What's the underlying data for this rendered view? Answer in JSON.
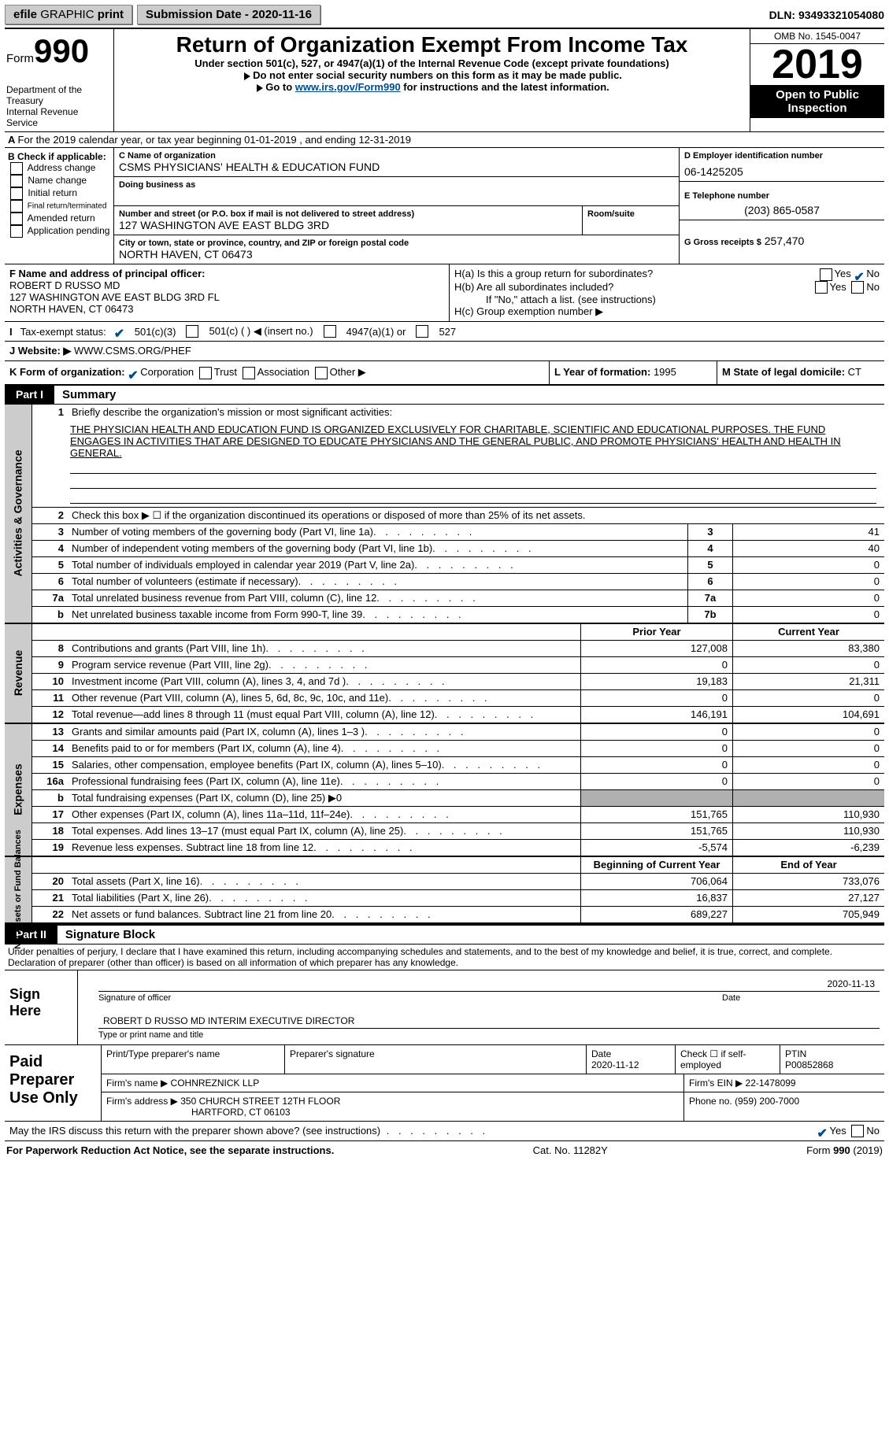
{
  "topbar": {
    "efile_a": "efile",
    "efile_b": "GRAPHIC",
    "efile_c": "print",
    "submission_label": "Submission Date - 2020-11-16",
    "dln": "DLN: 93493321054080"
  },
  "header": {
    "form_word": "Form",
    "form_num": "990",
    "dept1": "Department of the Treasury",
    "dept2": "Internal Revenue Service",
    "title": "Return of Organization Exempt From Income Tax",
    "sub1": "Under section 501(c), 527, or 4947(a)(1) of the Internal Revenue Code (except private foundations)",
    "sub2": "Do not enter social security numbers on this form as it may be made public.",
    "sub3a": "Go to ",
    "sub3_link": "www.irs.gov/Form990",
    "sub3b": " for instructions and the latest information.",
    "omb": "OMB No. 1545-0047",
    "year": "2019",
    "open": "Open to Public Inspection"
  },
  "row_a": "For the 2019 calendar year, or tax year beginning 01-01-2019    , and ending 12-31-2019",
  "box_b": {
    "lbl": "B Check if applicable:",
    "items": [
      "Address change",
      "Name change",
      "Initial return",
      "Final return/terminated",
      "Amended return",
      "Application pending"
    ]
  },
  "box_c": {
    "lbl_name": "C Name of organization",
    "name": "CSMS PHYSICIANS' HEALTH & EDUCATION FUND",
    "dba_lbl": "Doing business as",
    "addr_lbl": "Number and street (or P.O. box if mail is not delivered to street address)",
    "room_lbl": "Room/suite",
    "addr": "127 WASHINGTON AVE EAST BLDG 3RD",
    "city_lbl": "City or town, state or province, country, and ZIP or foreign postal code",
    "city": "NORTH HAVEN, CT  06473"
  },
  "box_d": {
    "lbl": "D Employer identification number",
    "ein": "06-1425205",
    "tel_lbl": "E Telephone number",
    "tel": "(203) 865-0587",
    "gross_lbl": "G Gross receipts $",
    "gross": "257,470"
  },
  "box_f": {
    "lbl": "F Name and address of principal officer:",
    "l1": "ROBERT D RUSSO MD",
    "l2": "127 WASHINGTON AVE EAST BLDG 3RD FL",
    "l3": "NORTH HAVEN, CT  06473"
  },
  "box_h": {
    "ha": "H(a)  Is this a group return for subordinates?",
    "hb": "H(b)  Are all subordinates included?",
    "hb_note": "If \"No,\" attach a list. (see instructions)",
    "hc": "H(c)  Group exemption number ▶",
    "yes": "Yes",
    "no": "No"
  },
  "row_i": {
    "lbl": "Tax-exempt status:",
    "o1": "501(c)(3)",
    "o2": "501(c) (  ) ◀ (insert no.)",
    "o3": "4947(a)(1) or",
    "o4": "527"
  },
  "row_j": {
    "lbl": "J   Website: ▶",
    "val": "WWW.CSMS.ORG/PHEF"
  },
  "row_k": {
    "lbl": "K Form of organization:",
    "opts": [
      "Corporation",
      "Trust",
      "Association",
      "Other ▶"
    ],
    "l_lbl": "L Year of formation: ",
    "l_val": "1995",
    "m_lbl": "M State of legal domicile: ",
    "m_val": "CT"
  },
  "part1": {
    "tab": "Part I",
    "title": "Summary"
  },
  "sec1": {
    "label": "Activities & Governance",
    "l1": "Briefly describe the organization's mission or most significant activities:",
    "mission": "THE PHYSICIAN HEALTH AND EDUCATION FUND IS ORGANIZED EXCLUSIVELY FOR CHARITABLE, SCIENTIFIC AND EDUCATIONAL PURPOSES. THE FUND ENGAGES IN ACTIVITIES THAT ARE DESIGNED TO EDUCATE PHYSICIANS AND THE GENERAL PUBLIC, AND PROMOTE PHYSICIANS' HEALTH AND HEALTH IN GENERAL.",
    "l2": "Check this box ▶ ☐ if the organization discontinued its operations or disposed of more than 25% of its net assets.",
    "rows": [
      {
        "n": "3",
        "t": "Number of voting members of the governing body (Part VI, line 1a)",
        "c": "3",
        "v": "41"
      },
      {
        "n": "4",
        "t": "Number of independent voting members of the governing body (Part VI, line 1b)",
        "c": "4",
        "v": "40"
      },
      {
        "n": "5",
        "t": "Total number of individuals employed in calendar year 2019 (Part V, line 2a)",
        "c": "5",
        "v": "0"
      },
      {
        "n": "6",
        "t": "Total number of volunteers (estimate if necessary)",
        "c": "6",
        "v": "0"
      },
      {
        "n": "7a",
        "t": "Total unrelated business revenue from Part VIII, column (C), line 12",
        "c": "7a",
        "v": "0"
      },
      {
        "n": "b",
        "t": "Net unrelated business taxable income from Form 990-T, line 39",
        "c": "7b",
        "v": "0"
      }
    ]
  },
  "colheads": {
    "prior": "Prior Year",
    "current": "Current Year",
    "bcy": "Beginning of Current Year",
    "eoy": "End of Year"
  },
  "sec_rev": {
    "label": "Revenue",
    "rows": [
      {
        "n": "8",
        "t": "Contributions and grants (Part VIII, line 1h)",
        "p": "127,008",
        "c": "83,380"
      },
      {
        "n": "9",
        "t": "Program service revenue (Part VIII, line 2g)",
        "p": "0",
        "c": "0"
      },
      {
        "n": "10",
        "t": "Investment income (Part VIII, column (A), lines 3, 4, and 7d )",
        "p": "19,183",
        "c": "21,311"
      },
      {
        "n": "11",
        "t": "Other revenue (Part VIII, column (A), lines 5, 6d, 8c, 9c, 10c, and 11e)",
        "p": "0",
        "c": "0"
      },
      {
        "n": "12",
        "t": "Total revenue—add lines 8 through 11 (must equal Part VIII, column (A), line 12)",
        "p": "146,191",
        "c": "104,691"
      }
    ]
  },
  "sec_exp": {
    "label": "Expenses",
    "rows": [
      {
        "n": "13",
        "t": "Grants and similar amounts paid (Part IX, column (A), lines 1–3 )",
        "p": "0",
        "c": "0"
      },
      {
        "n": "14",
        "t": "Benefits paid to or for members (Part IX, column (A), line 4)",
        "p": "0",
        "c": "0"
      },
      {
        "n": "15",
        "t": "Salaries, other compensation, employee benefits (Part IX, column (A), lines 5–10)",
        "p": "0",
        "c": "0"
      },
      {
        "n": "16a",
        "t": "Professional fundraising fees (Part IX, column (A), line 11e)",
        "p": "0",
        "c": "0"
      },
      {
        "n": "b",
        "t": "Total fundraising expenses (Part IX, column (D), line 25) ▶0",
        "p": "",
        "c": "",
        "gray": true
      },
      {
        "n": "17",
        "t": "Other expenses (Part IX, column (A), lines 11a–11d, 11f–24e)",
        "p": "151,765",
        "c": "110,930"
      },
      {
        "n": "18",
        "t": "Total expenses. Add lines 13–17 (must equal Part IX, column (A), line 25)",
        "p": "151,765",
        "c": "110,930"
      },
      {
        "n": "19",
        "t": "Revenue less expenses. Subtract line 18 from line 12",
        "p": "-5,574",
        "c": "-6,239"
      }
    ]
  },
  "sec_net": {
    "label": "Net Assets or Fund Balances",
    "rows": [
      {
        "n": "20",
        "t": "Total assets (Part X, line 16)",
        "p": "706,064",
        "c": "733,076"
      },
      {
        "n": "21",
        "t": "Total liabilities (Part X, line 26)",
        "p": "16,837",
        "c": "27,127"
      },
      {
        "n": "22",
        "t": "Net assets or fund balances. Subtract line 21 from line 20",
        "p": "689,227",
        "c": "705,949"
      }
    ]
  },
  "part2": {
    "tab": "Part II",
    "title": "Signature Block"
  },
  "sig": {
    "decl": "Under penalties of perjury, I declare that I have examined this return, including accompanying schedules and statements, and to the best of my knowledge and belief, it is true, correct, and complete. Declaration of preparer (other than officer) is based on all information of which preparer has any knowledge.",
    "sign_here": "Sign Here",
    "sig_officer": "Signature of officer",
    "date_lbl": "Date",
    "sig_date": "2020-11-13",
    "name": "ROBERT D RUSSO MD  INTERIM EXECUTIVE DIRECTOR",
    "name_lbl": "Type or print name and title"
  },
  "prep": {
    "title": "Paid Preparer Use Only",
    "h_name": "Print/Type preparer's name",
    "h_sig": "Preparer's signature",
    "h_date": "Date",
    "date": "2020-11-12",
    "h_check": "Check ☐ if self-employed",
    "h_ptin": "PTIN",
    "ptin": "P00852868",
    "firm_name_lbl": "Firm's name    ▶",
    "firm_name": "COHNREZNICK LLP",
    "firm_ein_lbl": "Firm's EIN ▶",
    "firm_ein": "22-1478099",
    "firm_addr_lbl": "Firm's address ▶",
    "firm_addr1": "350 CHURCH STREET 12TH FLOOR",
    "firm_addr2": "HARTFORD, CT  06103",
    "phone_lbl": "Phone no.",
    "phone": "(959) 200-7000"
  },
  "may_discuss": "May the IRS discuss this return with the preparer shown above? (see instructions)",
  "footer": {
    "left": "For Paperwork Reduction Act Notice, see the separate instructions.",
    "mid": "Cat. No. 11282Y",
    "right": "Form 990 (2019)"
  }
}
